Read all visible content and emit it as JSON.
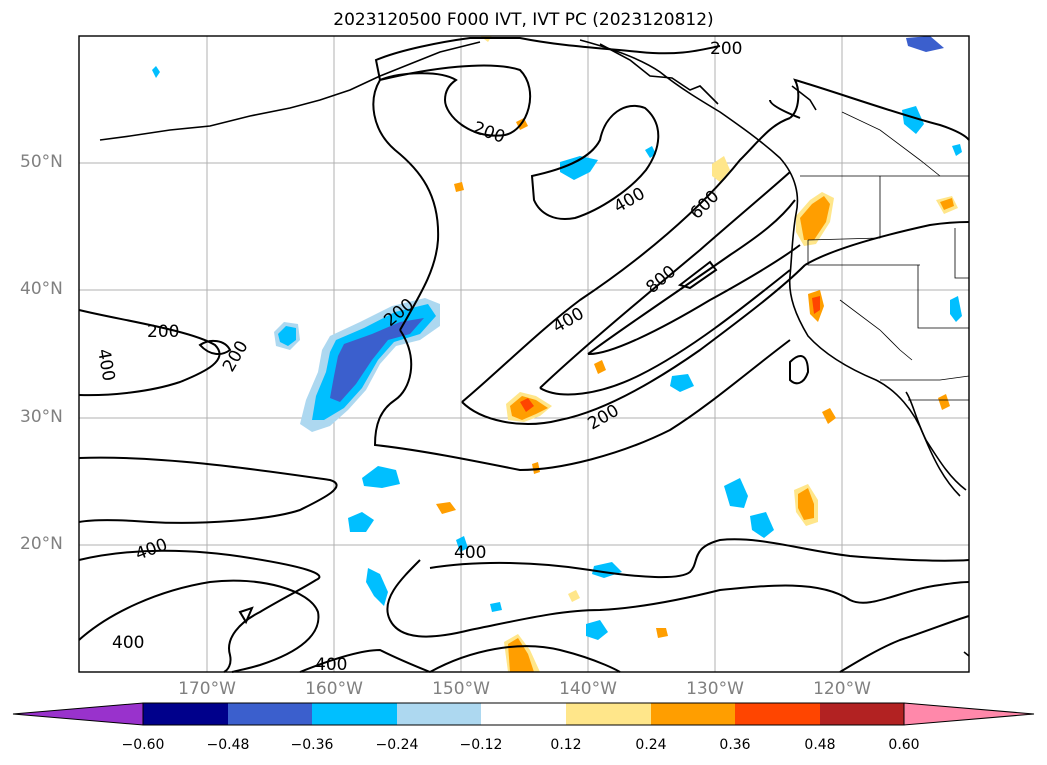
{
  "title": "2023120500 F000 IVT, IVT PC (2023120812)",
  "lat_labels": [
    "50°N",
    "40°N",
    "30°N",
    "20°N"
  ],
  "lon_labels": [
    "170°W",
    "160°W",
    "150°W",
    "140°W",
    "130°W",
    "120°W"
  ],
  "contour_labels": [
    "200",
    "200",
    "400",
    "600",
    "800",
    "400",
    "200",
    "200",
    "200",
    "400",
    "200",
    "400",
    "400",
    "400",
    "400"
  ],
  "colorbar": {
    "tick_labels": [
      "−0.60",
      "−0.48",
      "−0.36",
      "−0.24",
      "−0.12",
      "0.12",
      "0.24",
      "0.36",
      "0.48",
      "0.60"
    ],
    "colors": [
      "#9932cc",
      "#00008b",
      "#3b5fcd",
      "#00bfff",
      "#add8f0",
      "#ffffff",
      "#ffe68a",
      "#ff9e00",
      "#ff4500",
      "#b22222",
      "#ff88aa"
    ]
  },
  "colors": {
    "contour": "#000000",
    "coast": "#000000",
    "grid": "#b0b0b0"
  }
}
